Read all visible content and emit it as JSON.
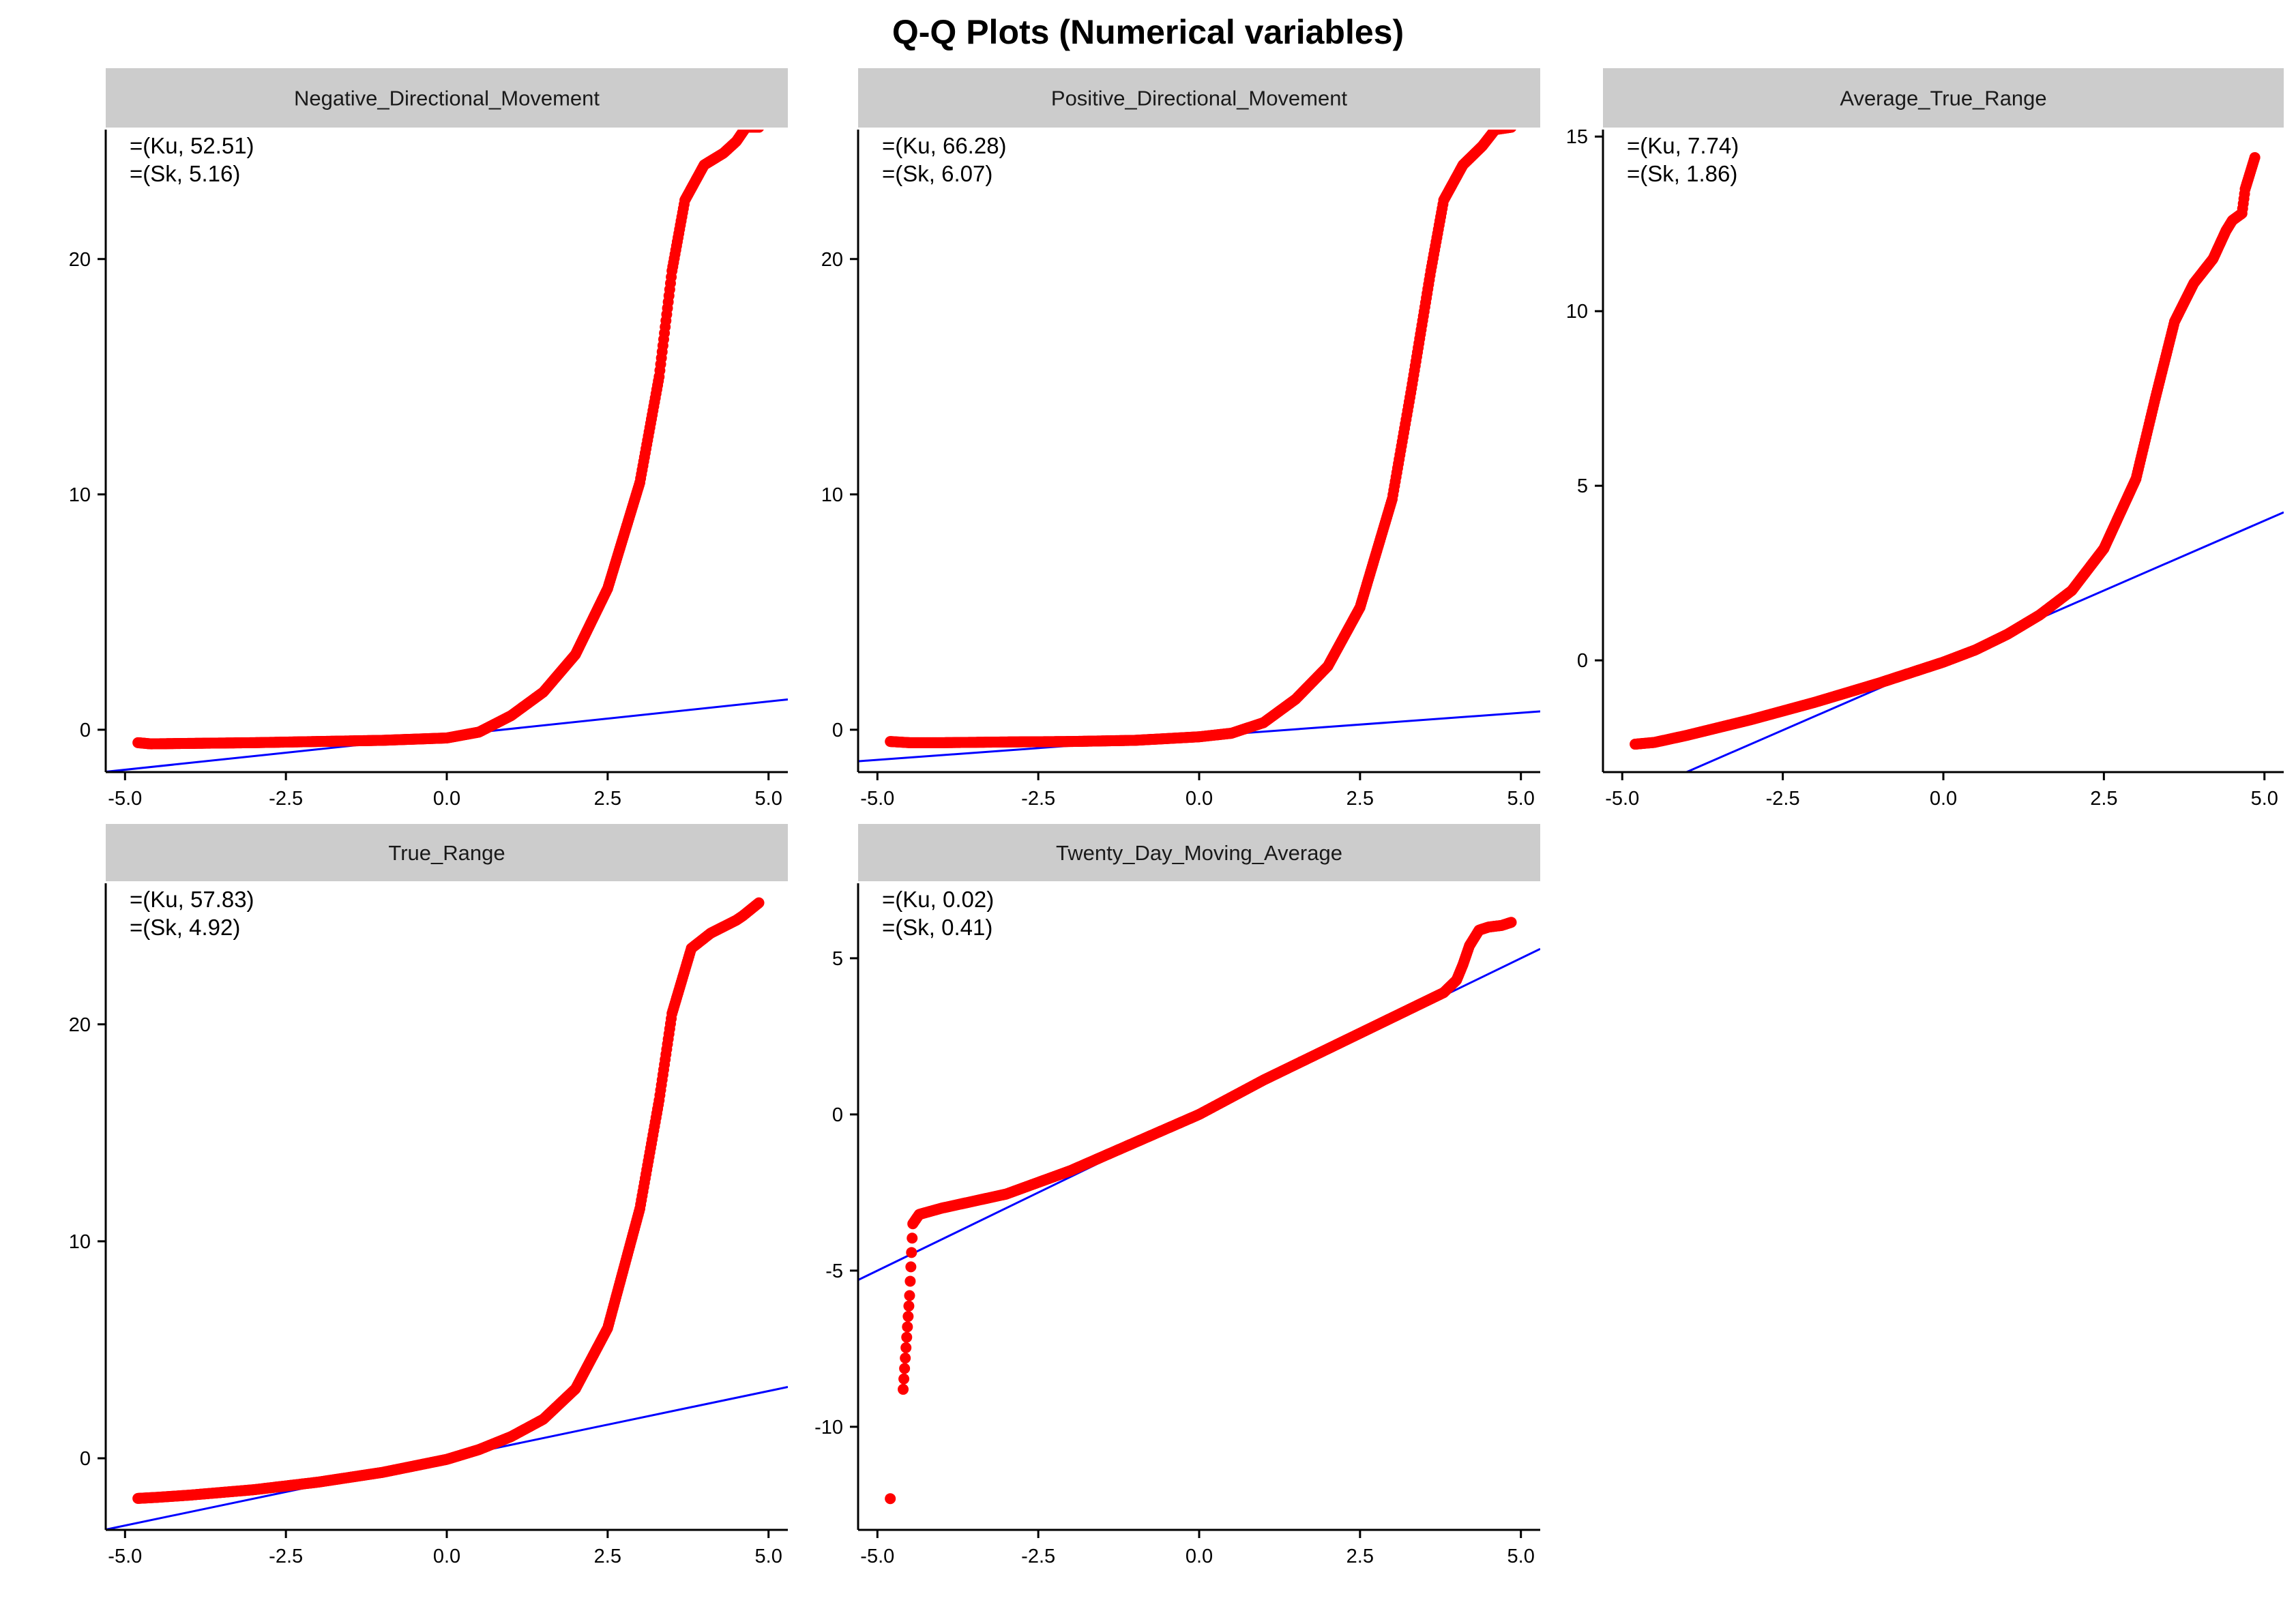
{
  "title": "Q-Q Plots (Numerical variables)",
  "colors": {
    "points": "#ff0000",
    "line": "#0000ff",
    "strip": "#cccccc",
    "axis": "#000000"
  },
  "chart_data": [
    {
      "type": "scatter",
      "panel": "Negative_Directional_Movement",
      "annotations": [
        "=(Ku, 52.51)",
        "=(Sk, 5.16)"
      ],
      "xlim": [
        -5.3,
        5.3
      ],
      "ylim": [
        -1.8,
        25.5
      ],
      "xticks": [
        -5.0,
        -2.5,
        0.0,
        2.5,
        5.0
      ],
      "xtick_labels": [
        "-5.0",
        "-2.5",
        "0.0",
        "2.5",
        "5.0"
      ],
      "yticks": [
        0,
        10,
        20
      ],
      "ytick_labels": [
        "0",
        "10",
        "20"
      ],
      "reference_line": {
        "intercept": -0.25,
        "slope": 0.29
      },
      "sample_quantiles": [
        [
          -4.8,
          -0.55
        ],
        [
          -4.6,
          -0.6
        ],
        [
          -4.0,
          -0.58
        ],
        [
          -3.0,
          -0.55
        ],
        [
          -2.0,
          -0.5
        ],
        [
          -1.0,
          -0.45
        ],
        [
          0.0,
          -0.35
        ],
        [
          0.5,
          -0.1
        ],
        [
          1.0,
          0.6
        ],
        [
          1.5,
          1.6
        ],
        [
          2.0,
          3.2
        ],
        [
          2.5,
          6.0
        ],
        [
          3.0,
          10.5
        ],
        [
          3.3,
          15.0
        ],
        [
          3.5,
          19.5
        ],
        [
          3.7,
          22.5
        ],
        [
          4.0,
          24.0
        ],
        [
          4.3,
          24.5
        ],
        [
          4.5,
          25.0
        ],
        [
          4.65,
          25.6
        ],
        [
          4.85,
          25.6
        ]
      ]
    },
    {
      "type": "scatter",
      "panel": "Positive_Directional_Movement",
      "annotations": [
        "=(Ku, 66.28)",
        "=(Sk, 6.07)"
      ],
      "xlim": [
        -5.3,
        5.3
      ],
      "ylim": [
        -1.8,
        25.5
      ],
      "xticks": [
        -5.0,
        -2.5,
        0.0,
        2.5,
        5.0
      ],
      "xtick_labels": [
        "-5.0",
        "-2.5",
        "0.0",
        "2.5",
        "5.0"
      ],
      "yticks": [
        0,
        10,
        20
      ],
      "ytick_labels": [
        "0",
        "10",
        "20"
      ],
      "reference_line": {
        "intercept": -0.28,
        "slope": 0.2
      },
      "sample_quantiles": [
        [
          -4.8,
          -0.5
        ],
        [
          -4.5,
          -0.55
        ],
        [
          -4.0,
          -0.55
        ],
        [
          -3.0,
          -0.52
        ],
        [
          -2.0,
          -0.5
        ],
        [
          -1.0,
          -0.45
        ],
        [
          0.0,
          -0.3
        ],
        [
          0.5,
          -0.15
        ],
        [
          1.0,
          0.3
        ],
        [
          1.5,
          1.3
        ],
        [
          2.0,
          2.7
        ],
        [
          2.5,
          5.2
        ],
        [
          3.0,
          9.8
        ],
        [
          3.3,
          14.5
        ],
        [
          3.6,
          19.5
        ],
        [
          3.8,
          22.5
        ],
        [
          4.1,
          24.0
        ],
        [
          4.4,
          24.8
        ],
        [
          4.6,
          25.5
        ],
        [
          4.85,
          25.6
        ]
      ]
    },
    {
      "type": "scatter",
      "panel": "Average_True_Range",
      "annotations": [
        "=(Ku, 7.74)",
        "=(Sk, 1.86)"
      ],
      "xlim": [
        -5.3,
        5.3
      ],
      "ylim": [
        -3.2,
        15.2
      ],
      "xticks": [
        -5.0,
        -2.5,
        0.0,
        2.5,
        5.0
      ],
      "xtick_labels": [
        "-5.0",
        "-2.5",
        "0.0",
        "2.5",
        "5.0"
      ],
      "yticks": [
        0,
        5,
        10,
        15
      ],
      "ytick_labels": [
        "0",
        "5",
        "10",
        "15"
      ],
      "reference_line": {
        "intercept": 0.0,
        "slope": 0.8
      },
      "sample_quantiles": [
        [
          -4.8,
          -2.4
        ],
        [
          -4.5,
          -2.35
        ],
        [
          -4.0,
          -2.15
        ],
        [
          -3.0,
          -1.7
        ],
        [
          -2.0,
          -1.2
        ],
        [
          -1.0,
          -0.65
        ],
        [
          0.0,
          -0.05
        ],
        [
          0.5,
          0.3
        ],
        [
          1.0,
          0.75
        ],
        [
          1.5,
          1.3
        ],
        [
          2.0,
          2.0
        ],
        [
          2.5,
          3.2
        ],
        [
          3.0,
          5.2
        ],
        [
          3.3,
          7.5
        ],
        [
          3.6,
          9.7
        ],
        [
          3.9,
          10.8
        ],
        [
          4.2,
          11.5
        ],
        [
          4.4,
          12.3
        ],
        [
          4.5,
          12.6
        ],
        [
          4.65,
          12.8
        ],
        [
          4.7,
          13.5
        ],
        [
          4.85,
          14.4
        ]
      ]
    },
    {
      "type": "scatter",
      "panel": "True_Range",
      "annotations": [
        "=(Ku, 57.83)",
        "=(Sk, 4.92)"
      ],
      "xlim": [
        -5.3,
        5.3
      ],
      "ylim": [
        -3.3,
        26.5
      ],
      "xticks": [
        -5.0,
        -2.5,
        0.0,
        2.5,
        5.0
      ],
      "xtick_labels": [
        "-5.0",
        "-2.5",
        "0.0",
        "2.5",
        "5.0"
      ],
      "yticks": [
        0,
        10,
        20
      ],
      "ytick_labels": [
        "0",
        "10",
        "20"
      ],
      "reference_line": {
        "intercept": 0.0,
        "slope": 0.62
      },
      "sample_quantiles": [
        [
          -4.8,
          -1.85
        ],
        [
          -4.5,
          -1.8
        ],
        [
          -4.0,
          -1.7
        ],
        [
          -3.0,
          -1.45
        ],
        [
          -2.0,
          -1.1
        ],
        [
          -1.0,
          -0.65
        ],
        [
          0.0,
          -0.05
        ],
        [
          0.5,
          0.4
        ],
        [
          1.0,
          1.0
        ],
        [
          1.5,
          1.8
        ],
        [
          2.0,
          3.2
        ],
        [
          2.5,
          6.0
        ],
        [
          3.0,
          11.5
        ],
        [
          3.3,
          16.5
        ],
        [
          3.5,
          20.5
        ],
        [
          3.8,
          23.5
        ],
        [
          4.1,
          24.2
        ],
        [
          4.3,
          24.5
        ],
        [
          4.5,
          24.8
        ],
        [
          4.6,
          25.0
        ],
        [
          4.85,
          25.6
        ]
      ]
    },
    {
      "type": "scatter",
      "panel": "Twenty_Day_Moving_Average",
      "annotations": [
        "=(Ku, 0.02)",
        "=(Sk, 0.41)"
      ],
      "xlim": [
        -5.3,
        5.3
      ],
      "ylim": [
        -13.3,
        7.4
      ],
      "xticks": [
        -5.0,
        -2.5,
        0.0,
        2.5,
        5.0
      ],
      "xtick_labels": [
        "-5.0",
        "-2.5",
        "0.0",
        "2.5",
        "5.0"
      ],
      "yticks": [
        -10,
        -5,
        0,
        5
      ],
      "ytick_labels": [
        "-10",
        "-5",
        "0",
        "5"
      ],
      "reference_line": {
        "intercept": 0.0,
        "slope": 1.0
      },
      "sample_quantiles": [
        [
          -4.8,
          -12.3
        ],
        [
          -4.6,
          -8.8
        ],
        [
          -4.5,
          -5.8
        ],
        [
          -4.45,
          -3.5
        ],
        [
          -4.35,
          -3.2
        ],
        [
          -4.0,
          -3.0
        ],
        [
          -3.0,
          -2.55
        ],
        [
          -2.0,
          -1.8
        ],
        [
          -1.0,
          -0.9
        ],
        [
          0.0,
          0.0
        ],
        [
          1.0,
          1.1
        ],
        [
          2.0,
          2.1
        ],
        [
          3.0,
          3.1
        ],
        [
          3.5,
          3.6
        ],
        [
          3.8,
          3.9
        ],
        [
          4.0,
          4.3
        ],
        [
          4.1,
          4.8
        ],
        [
          4.2,
          5.4
        ],
        [
          4.35,
          5.9
        ],
        [
          4.5,
          6.0
        ],
        [
          4.7,
          6.05
        ],
        [
          4.85,
          6.15
        ]
      ]
    }
  ]
}
